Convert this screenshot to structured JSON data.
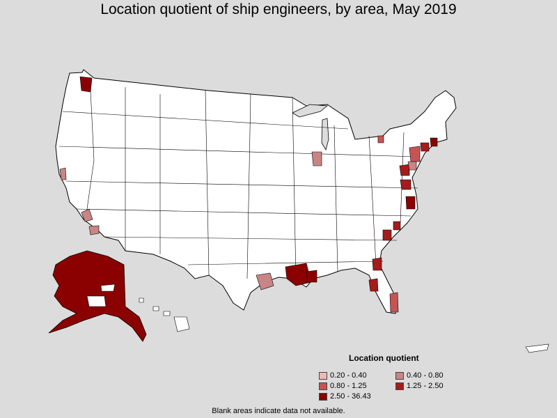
{
  "title": "Location quotient of ship engineers, by area, May 2019",
  "legend": {
    "title": "Location quotient",
    "items": [
      {
        "label": "0.20 - 0.40",
        "color": "#f4b6b6"
      },
      {
        "label": "0.40 - 0.80",
        "color": "#c98585"
      },
      {
        "label": "0.80 - 1.25",
        "color": "#c75454"
      },
      {
        "label": "1.25 - 2.50",
        "color": "#a41c1c"
      },
      {
        "label": "2.50 - 36.43",
        "color": "#8b0000"
      }
    ]
  },
  "footnote": "Blank areas indicate data not available.",
  "colors": {
    "background": "#dcdcdc",
    "land": "#ffffff",
    "border": "#000000"
  }
}
